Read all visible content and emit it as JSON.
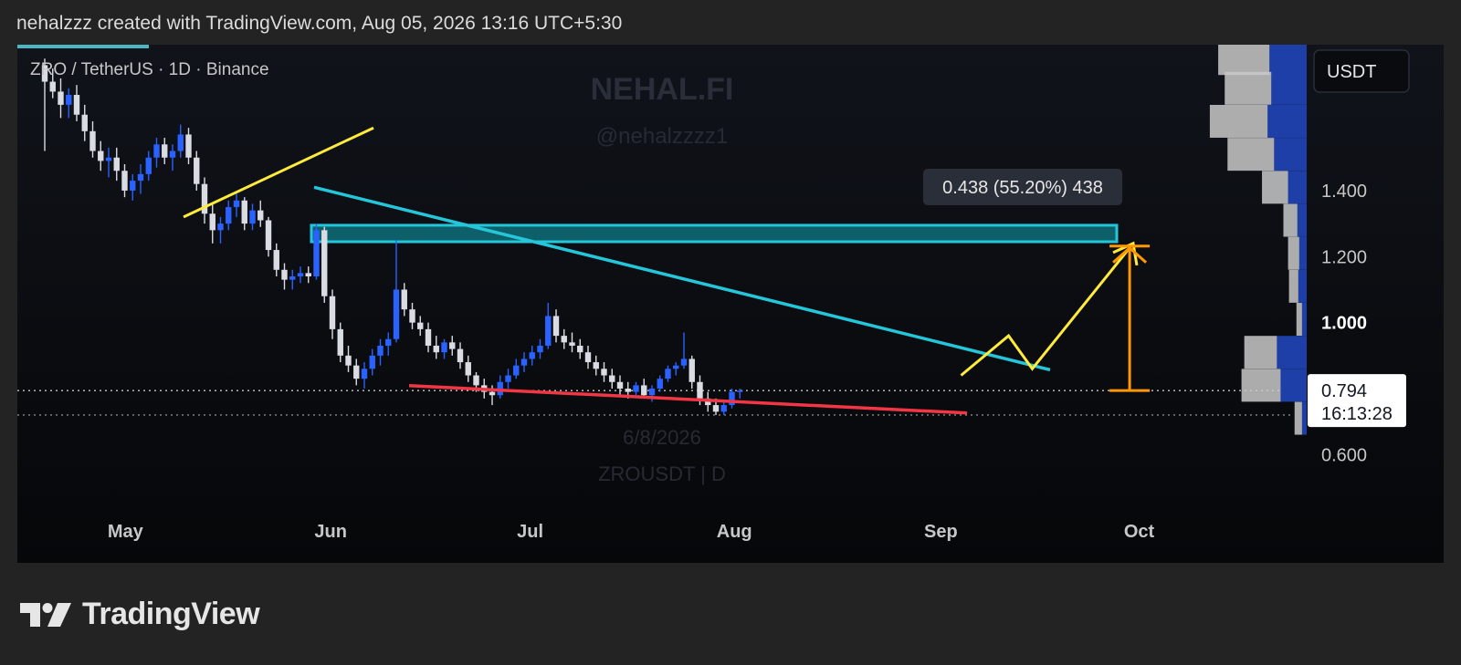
{
  "header": {
    "attribution": "nehalzzz created with TradingView.com, Aug 05, 2026 13:16 UTC+5:30"
  },
  "footer": {
    "brand": "TradingView"
  },
  "currency_button": "USDT",
  "colors": {
    "up": "#2962ff",
    "down": "#d9dce3",
    "cyan": "#26c6da",
    "yellow": "#ffeb3b",
    "orange": "#ff9800",
    "red": "#f23645",
    "zone": "#0e7c86"
  },
  "chart_data": {
    "type": "candlestick",
    "symbol": "ZRO / TetherUS · 1D · Binance",
    "watermark": {
      "brand": "NEHAL.FI",
      "handle": "@nehalzzzz1",
      "date": "6/8/2026",
      "ticker": "ZROUSDT | D"
    },
    "y_ticks": [
      "1.400",
      "1.200",
      "1.000",
      "0.600"
    ],
    "y_range": [
      0.46,
      1.82
    ],
    "x_ticks": [
      "May",
      "Jun",
      "Jul",
      "Aug",
      "Sep",
      "Oct"
    ],
    "last_price": "0.794",
    "countdown": "16:13:28",
    "measure_label": "0.438 (55.20%) 438",
    "resistance_zone": [
      1.245,
      1.295
    ],
    "candles": [
      [
        1.78,
        1.8,
        1.52,
        1.73
      ],
      [
        1.73,
        1.77,
        1.68,
        1.7
      ],
      [
        1.7,
        1.74,
        1.62,
        1.66
      ],
      [
        1.66,
        1.71,
        1.62,
        1.69
      ],
      [
        1.69,
        1.72,
        1.61,
        1.63
      ],
      [
        1.63,
        1.66,
        1.55,
        1.58
      ],
      [
        1.58,
        1.61,
        1.5,
        1.52
      ],
      [
        1.52,
        1.55,
        1.46,
        1.49
      ],
      [
        1.49,
        1.53,
        1.44,
        1.5
      ],
      [
        1.5,
        1.53,
        1.43,
        1.46
      ],
      [
        1.46,
        1.48,
        1.38,
        1.4
      ],
      [
        1.4,
        1.45,
        1.37,
        1.43
      ],
      [
        1.43,
        1.48,
        1.39,
        1.45
      ],
      [
        1.45,
        1.52,
        1.43,
        1.5
      ],
      [
        1.5,
        1.56,
        1.47,
        1.54
      ],
      [
        1.54,
        1.56,
        1.48,
        1.5
      ],
      [
        1.5,
        1.54,
        1.46,
        1.52
      ],
      [
        1.52,
        1.6,
        1.5,
        1.57
      ],
      [
        1.57,
        1.59,
        1.48,
        1.5
      ],
      [
        1.5,
        1.52,
        1.4,
        1.42
      ],
      [
        1.42,
        1.44,
        1.3,
        1.33
      ],
      [
        1.33,
        1.36,
        1.24,
        1.28
      ],
      [
        1.28,
        1.32,
        1.24,
        1.3
      ],
      [
        1.3,
        1.37,
        1.28,
        1.35
      ],
      [
        1.35,
        1.39,
        1.32,
        1.37
      ],
      [
        1.37,
        1.38,
        1.28,
        1.3
      ],
      [
        1.3,
        1.36,
        1.28,
        1.34
      ],
      [
        1.34,
        1.37,
        1.29,
        1.31
      ],
      [
        1.31,
        1.32,
        1.2,
        1.22
      ],
      [
        1.22,
        1.24,
        1.14,
        1.16
      ],
      [
        1.16,
        1.18,
        1.1,
        1.13
      ],
      [
        1.13,
        1.16,
        1.1,
        1.14
      ],
      [
        1.14,
        1.17,
        1.12,
        1.15
      ],
      [
        1.15,
        1.17,
        1.12,
        1.14
      ],
      [
        1.14,
        1.3,
        1.13,
        1.28
      ],
      [
        1.28,
        1.29,
        1.06,
        1.08
      ],
      [
        1.08,
        1.1,
        0.95,
        0.98
      ],
      [
        0.98,
        1.0,
        0.88,
        0.9
      ],
      [
        0.9,
        0.93,
        0.85,
        0.87
      ],
      [
        0.87,
        0.89,
        0.81,
        0.83
      ],
      [
        0.83,
        0.88,
        0.8,
        0.86
      ],
      [
        0.86,
        0.92,
        0.84,
        0.9
      ],
      [
        0.9,
        0.95,
        0.87,
        0.93
      ],
      [
        0.93,
        0.97,
        0.9,
        0.95
      ],
      [
        0.95,
        1.25,
        0.94,
        1.1
      ],
      [
        1.1,
        1.12,
        1.02,
        1.04
      ],
      [
        1.04,
        1.06,
        0.98,
        1.0
      ],
      [
        1.0,
        1.02,
        0.96,
        0.98
      ],
      [
        0.98,
        1.0,
        0.91,
        0.93
      ],
      [
        0.93,
        0.96,
        0.89,
        0.91
      ],
      [
        0.91,
        0.95,
        0.89,
        0.94
      ],
      [
        0.94,
        0.96,
        0.9,
        0.92
      ],
      [
        0.92,
        0.94,
        0.86,
        0.88
      ],
      [
        0.88,
        0.9,
        0.82,
        0.84
      ],
      [
        0.84,
        0.85,
        0.79,
        0.81
      ],
      [
        0.81,
        0.83,
        0.77,
        0.79
      ],
      [
        0.79,
        0.81,
        0.75,
        0.78
      ],
      [
        0.78,
        0.84,
        0.77,
        0.82
      ],
      [
        0.82,
        0.86,
        0.8,
        0.84
      ],
      [
        0.84,
        0.89,
        0.83,
        0.87
      ],
      [
        0.87,
        0.91,
        0.85,
        0.89
      ],
      [
        0.89,
        0.93,
        0.87,
        0.91
      ],
      [
        0.91,
        0.95,
        0.89,
        0.93
      ],
      [
        0.93,
        1.06,
        0.92,
        1.02
      ],
      [
        1.02,
        1.04,
        0.94,
        0.96
      ],
      [
        0.96,
        0.98,
        0.92,
        0.94
      ],
      [
        0.94,
        0.97,
        0.91,
        0.93
      ],
      [
        0.93,
        0.95,
        0.89,
        0.91
      ],
      [
        0.91,
        0.93,
        0.86,
        0.88
      ],
      [
        0.88,
        0.9,
        0.84,
        0.86
      ],
      [
        0.86,
        0.88,
        0.82,
        0.84
      ],
      [
        0.84,
        0.86,
        0.8,
        0.82
      ],
      [
        0.82,
        0.84,
        0.78,
        0.8
      ],
      [
        0.8,
        0.82,
        0.77,
        0.79
      ],
      [
        0.79,
        0.82,
        0.78,
        0.81
      ],
      [
        0.81,
        0.83,
        0.77,
        0.78
      ],
      [
        0.78,
        0.81,
        0.76,
        0.8
      ],
      [
        0.8,
        0.84,
        0.79,
        0.83
      ],
      [
        0.83,
        0.87,
        0.82,
        0.86
      ],
      [
        0.86,
        0.88,
        0.84,
        0.87
      ],
      [
        0.87,
        0.97,
        0.86,
        0.89
      ],
      [
        0.89,
        0.9,
        0.8,
        0.82
      ],
      [
        0.82,
        0.84,
        0.75,
        0.77
      ],
      [
        0.77,
        0.79,
        0.73,
        0.75
      ],
      [
        0.75,
        0.77,
        0.72,
        0.73
      ],
      [
        0.73,
        0.76,
        0.72,
        0.75
      ],
      [
        0.75,
        0.8,
        0.74,
        0.79
      ],
      [
        0.79,
        0.8,
        0.77,
        0.794
      ]
    ],
    "volume_profile": [
      {
        "price": 1.8,
        "gray": 0.55,
        "blue": 0.4
      },
      {
        "price": 1.71,
        "gray": 0.5,
        "blue": 0.38
      },
      {
        "price": 1.61,
        "gray": 0.62,
        "blue": 0.42
      },
      {
        "price": 1.51,
        "gray": 0.5,
        "blue": 0.35
      },
      {
        "price": 1.41,
        "gray": 0.28,
        "blue": 0.2
      },
      {
        "price": 1.31,
        "gray": 0.15,
        "blue": 0.1
      },
      {
        "price": 1.21,
        "gray": 0.12,
        "blue": 0.08
      },
      {
        "price": 1.11,
        "gray": 0.1,
        "blue": 0.09
      },
      {
        "price": 1.01,
        "gray": 0.06,
        "blue": 0.05
      },
      {
        "price": 0.91,
        "gray": 0.35,
        "blue": 0.32
      },
      {
        "price": 0.81,
        "gray": 0.42,
        "blue": 0.28
      },
      {
        "price": 0.71,
        "gray": 0.08,
        "blue": 0.05
      }
    ],
    "drawings": {
      "yellow_support": [
        [
          0.14,
          1.32
        ],
        [
          0.3,
          1.59
        ]
      ],
      "cyan_downtrend": [
        [
          0.25,
          1.41
        ],
        [
          0.87,
          0.857
        ]
      ],
      "red_support": [
        [
          0.33,
          0.809
        ],
        [
          0.8,
          0.726
        ]
      ],
      "projection": [
        [
          0.795,
          0.84
        ],
        [
          0.835,
          0.96
        ],
        [
          0.855,
          0.86
        ],
        [
          0.94,
          1.24
        ]
      ],
      "measure_bar_x": 0.937,
      "measure_range": [
        0.794,
        1.232
      ]
    }
  }
}
